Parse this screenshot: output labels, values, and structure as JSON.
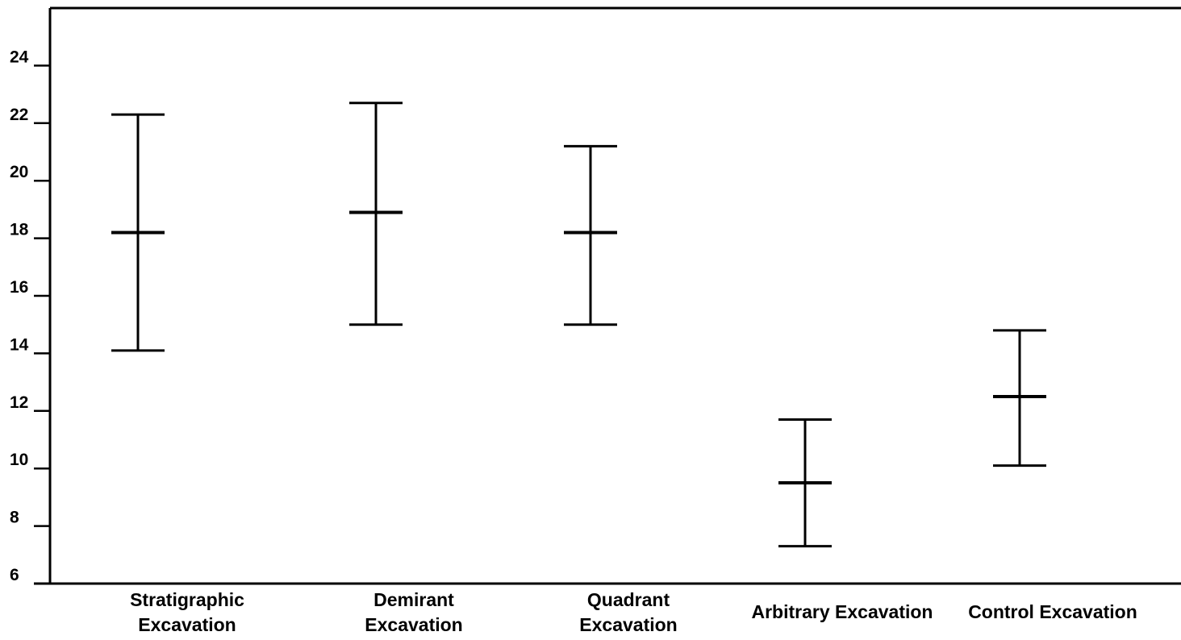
{
  "chart_data": {
    "type": "errorbar",
    "title": "",
    "xlabel": "",
    "ylabel": "",
    "ylim": [
      6,
      26
    ],
    "yticks": [
      6,
      8,
      10,
      12,
      14,
      16,
      18,
      20,
      22,
      24
    ],
    "categories": [
      [
        "Stratigraphic",
        "Excavation"
      ],
      [
        "Demirant",
        "Excavation"
      ],
      [
        "Quadrant",
        "Excavation"
      ],
      [
        "Arbitrary Excavation"
      ],
      [
        "Control  Excavation"
      ]
    ],
    "series": [
      {
        "mean": [
          18.2,
          18.9,
          18.2,
          9.5,
          12.5
        ],
        "lower": [
          14.1,
          15.0,
          15.0,
          7.3,
          10.1
        ],
        "upper": [
          22.3,
          22.7,
          21.2,
          11.7,
          14.8
        ]
      }
    ],
    "grid": false,
    "legend": "none",
    "colors": {
      "ink": "#000000",
      "background": "#ffffff"
    }
  }
}
